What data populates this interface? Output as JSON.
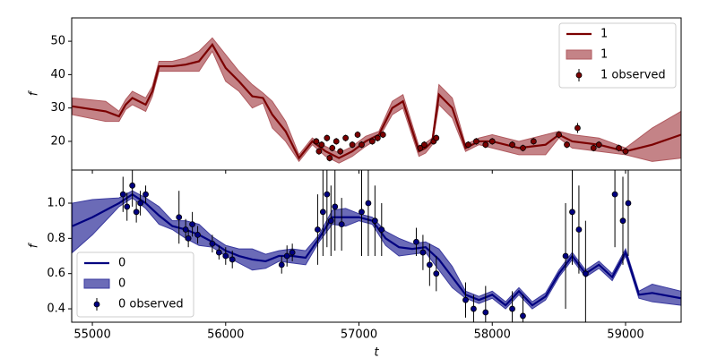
{
  "chart_data": [
    {
      "type": "line",
      "ylabel": "f",
      "xlim": [
        54845,
        59417
      ],
      "xticks": [
        55000,
        56000,
        57000,
        58000,
        59000
      ],
      "ylim": [
        11.4,
        57
      ],
      "yticks": [
        20,
        30,
        40,
        50
      ],
      "legend": "upper right",
      "series": [
        {
          "name": "1",
          "kind": "line",
          "color": "#7b0000",
          "x": [
            54850,
            55100,
            55200,
            55250,
            55300,
            55400,
            55450,
            55500,
            55600,
            55700,
            55800,
            55900,
            56000,
            56100,
            56200,
            56280,
            56350,
            56450,
            56550,
            56650,
            56750,
            56850,
            56950,
            57050,
            57150,
            57250,
            57330,
            57450,
            57500,
            57550,
            57600,
            57700,
            57800,
            57900,
            58000,
            58200,
            58400,
            58500,
            58600,
            58800,
            59000,
            59200,
            59417
          ],
          "values": [
            30.5,
            29,
            27.5,
            31,
            33,
            31,
            35,
            42.5,
            42.5,
            43,
            44,
            49,
            42,
            38,
            33.5,
            33,
            28,
            23,
            15,
            20,
            17,
            15,
            17,
            20,
            22,
            30,
            32,
            17,
            18,
            20,
            34,
            30,
            18,
            20,
            20,
            18,
            19,
            22,
            20,
            19,
            17,
            19,
            22
          ]
        },
        {
          "name": "1",
          "kind": "band",
          "color": "#b05a5f",
          "x": [
            54850,
            55100,
            55200,
            55250,
            55300,
            55400,
            55450,
            55500,
            55600,
            55700,
            55800,
            55900,
            56000,
            56100,
            56200,
            56280,
            56350,
            56450,
            56550,
            56650,
            56750,
            56850,
            56950,
            57050,
            57150,
            57250,
            57330,
            57450,
            57500,
            57550,
            57600,
            57700,
            57800,
            57900,
            58000,
            58200,
            58400,
            58500,
            58600,
            58800,
            59000,
            59200,
            59417
          ],
          "lower": [
            28,
            26,
            26,
            29.5,
            31,
            29,
            33.5,
            41,
            41,
            41,
            41,
            47,
            38,
            35,
            30,
            31.5,
            24,
            20,
            14,
            19,
            15.5,
            13.5,
            15.5,
            18.5,
            21,
            28,
            30,
            15.5,
            16.5,
            19,
            31,
            27,
            17,
            19,
            18,
            16,
            16,
            21,
            18,
            17,
            16,
            14,
            15
          ],
          "upper": [
            33,
            32,
            29,
            32.5,
            35,
            33,
            36.5,
            44,
            44,
            45,
            47,
            51,
            46,
            41,
            37,
            34.5,
            32,
            26,
            16,
            21,
            18.5,
            16.5,
            18.5,
            21.5,
            23,
            32,
            34,
            18.5,
            19.5,
            21,
            37,
            33,
            19,
            21,
            22,
            20,
            22,
            23,
            22,
            21,
            18,
            24,
            29
          ]
        },
        {
          "name": "1 observed",
          "kind": "points",
          "color": "#7b0000",
          "x": [
            56680,
            56700,
            56720,
            56760,
            56780,
            56800,
            56830,
            56860,
            56900,
            56950,
            56990,
            57020,
            57100,
            57140,
            57180,
            57460,
            57490,
            57560,
            57580,
            57820,
            57880,
            57950,
            58000,
            58150,
            58230,
            58310,
            58500,
            58560,
            58640,
            58760,
            58800,
            58950,
            59000
          ],
          "values": [
            20,
            17,
            19,
            21,
            15,
            18,
            20,
            17,
            21,
            19,
            22,
            19,
            20,
            21,
            22,
            18,
            19,
            20,
            21,
            19,
            20,
            19,
            20,
            19,
            18,
            20,
            22,
            19,
            24,
            18,
            19,
            18,
            17
          ],
          "errors": [
            1,
            1,
            1,
            1,
            1,
            1,
            1,
            1,
            1,
            1,
            1,
            1,
            1,
            1,
            1,
            1,
            1,
            1,
            1,
            1,
            1,
            1,
            1,
            1,
            1,
            1,
            1,
            1,
            1.5,
            1,
            1,
            1,
            1
          ]
        }
      ]
    },
    {
      "type": "line",
      "ylabel": "f",
      "xlabel": "t",
      "xlim": [
        54845,
        59417
      ],
      "xticks": [
        55000,
        56000,
        57000,
        58000,
        59000
      ],
      "ylim": [
        0.324,
        1.188
      ],
      "yticks": [
        0.4,
        0.6,
        0.8,
        {
          "value": 1,
          "label": "1.0"
        }
      ],
      "legend": "lower left",
      "series": [
        {
          "name": "0",
          "kind": "line",
          "color": "#000080",
          "x": [
            54850,
            55000,
            55200,
            55300,
            55400,
            55500,
            55600,
            55700,
            55800,
            55900,
            56000,
            56100,
            56200,
            56300,
            56400,
            56500,
            56600,
            56700,
            56800,
            56900,
            57000,
            57100,
            57200,
            57300,
            57400,
            57500,
            57600,
            57700,
            57800,
            57900,
            58000,
            58100,
            58200,
            58300,
            58400,
            58500,
            58600,
            58700,
            58800,
            58900,
            59000,
            59100,
            59200,
            59417
          ],
          "values": [
            0.87,
            0.92,
            1.0,
            1.05,
            1.0,
            0.93,
            0.87,
            0.85,
            0.82,
            0.78,
            0.73,
            0.7,
            0.68,
            0.67,
            0.7,
            0.7,
            0.69,
            0.8,
            0.92,
            0.92,
            0.92,
            0.9,
            0.8,
            0.75,
            0.74,
            0.75,
            0.68,
            0.58,
            0.48,
            0.45,
            0.48,
            0.42,
            0.5,
            0.42,
            0.47,
            0.6,
            0.7,
            0.6,
            0.65,
            0.58,
            0.72,
            0.48,
            0.49,
            0.46
          ]
        },
        {
          "name": "0",
          "kind": "band",
          "color": "#3a3a9f",
          "x": [
            54850,
            55000,
            55200,
            55300,
            55400,
            55500,
            55600,
            55700,
            55800,
            55900,
            56000,
            56100,
            56200,
            56300,
            56400,
            56500,
            56600,
            56700,
            56800,
            56900,
            57000,
            57100,
            57200,
            57300,
            57400,
            57500,
            57600,
            57700,
            57800,
            57900,
            58000,
            58100,
            58200,
            58300,
            58400,
            58500,
            58600,
            58700,
            58800,
            58900,
            59000,
            59100,
            59200,
            59417
          ],
          "lower": [
            0.72,
            0.82,
            0.98,
            1.03,
            0.97,
            0.88,
            0.85,
            0.8,
            0.76,
            0.75,
            0.7,
            0.66,
            0.62,
            0.63,
            0.67,
            0.66,
            0.65,
            0.78,
            0.88,
            0.87,
            0.9,
            0.88,
            0.76,
            0.7,
            0.71,
            0.72,
            0.62,
            0.52,
            0.46,
            0.43,
            0.46,
            0.4,
            0.48,
            0.4,
            0.45,
            0.58,
            0.68,
            0.58,
            0.63,
            0.56,
            0.7,
            0.46,
            0.44,
            0.42
          ],
          "upper": [
            1.0,
            1.02,
            1.03,
            1.07,
            1.03,
            0.98,
            0.9,
            0.9,
            0.88,
            0.81,
            0.76,
            0.74,
            0.74,
            0.71,
            0.73,
            0.74,
            0.73,
            0.82,
            0.96,
            0.97,
            0.94,
            0.92,
            0.84,
            0.8,
            0.77,
            0.78,
            0.74,
            0.64,
            0.5,
            0.47,
            0.5,
            0.44,
            0.52,
            0.44,
            0.49,
            0.62,
            0.72,
            0.62,
            0.67,
            0.6,
            0.74,
            0.5,
            0.54,
            0.5
          ]
        },
        {
          "name": "0 observed",
          "kind": "points",
          "color": "#000080",
          "x": [
            55230,
            55260,
            55300,
            55330,
            55360,
            55400,
            55650,
            55700,
            55720,
            55750,
            55790,
            55900,
            55950,
            56000,
            56050,
            56420,
            56460,
            56500,
            56690,
            56730,
            56760,
            56790,
            56820,
            56870,
            57020,
            57070,
            57120,
            57170,
            57430,
            57480,
            57530,
            57580,
            57800,
            57860,
            57950,
            58150,
            58230,
            58550,
            58600,
            58650,
            58700,
            58920,
            58980,
            59020
          ],
          "values": [
            1.05,
            0.98,
            1.1,
            0.95,
            1.0,
            1.05,
            0.92,
            0.85,
            0.8,
            0.88,
            0.82,
            0.77,
            0.72,
            0.7,
            0.68,
            0.65,
            0.7,
            0.72,
            0.85,
            0.95,
            1.05,
            0.9,
            0.98,
            0.88,
            0.95,
            1.0,
            0.9,
            0.85,
            0.78,
            0.72,
            0.65,
            0.6,
            0.45,
            0.4,
            0.38,
            0.4,
            0.36,
            0.7,
            0.95,
            0.85,
            0.6,
            1.05,
            0.9,
            1.0
          ],
          "errors": [
            0.1,
            0.08,
            0.12,
            0.06,
            0.07,
            0.05,
            0.15,
            0.06,
            0.05,
            0.07,
            0.05,
            0.05,
            0.04,
            0.05,
            0.05,
            0.05,
            0.06,
            0.05,
            0.2,
            0.25,
            0.3,
            0.2,
            0.25,
            0.15,
            0.25,
            0.3,
            0.2,
            0.15,
            0.08,
            0.1,
            0.12,
            0.1,
            0.1,
            0.08,
            0.15,
            0.1,
            0.12,
            0.3,
            0.3,
            0.25,
            0.3,
            0.3,
            0.25,
            0.3
          ]
        }
      ]
    }
  ]
}
